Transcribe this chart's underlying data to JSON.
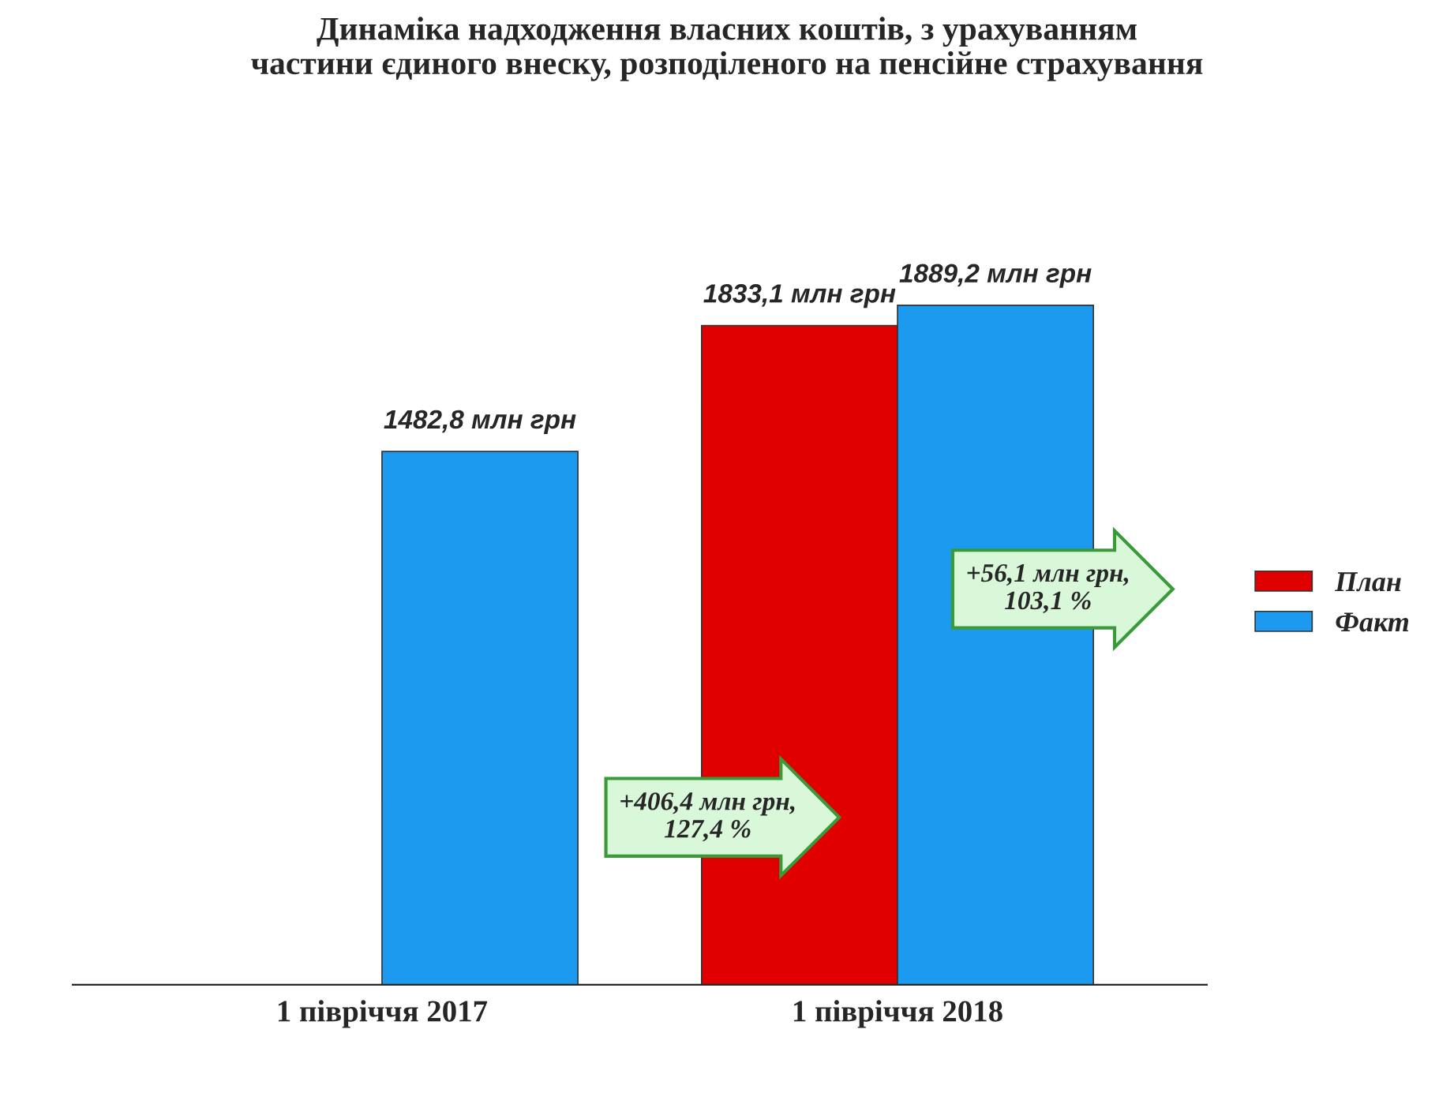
{
  "chart_data": {
    "type": "bar",
    "title": "Динаміка надходження власних коштів, з урахуванням\nчастини єдиного внеску, розподіленого на пенсійне страхування",
    "categories": [
      "1 півріччя 2017",
      "1 півріччя 2018"
    ],
    "series": [
      {
        "name": "План",
        "color": "#e00000",
        "values": [
          null,
          1833.1
        ],
        "value_labels": [
          null,
          "1833,1 млн грн"
        ]
      },
      {
        "name": "Факт",
        "color": "#1c9af0",
        "values": [
          1482.8,
          1889.2
        ],
        "value_labels": [
          "1482,8 млн грн",
          "1889,2 млн грн"
        ]
      }
    ],
    "annotations": [
      "+406,4 млн грн,\n127,4 %",
      "+56,1 млн грн,\n103,1 %"
    ],
    "legend": "right",
    "tick_labels": "x",
    "grid": false
  }
}
